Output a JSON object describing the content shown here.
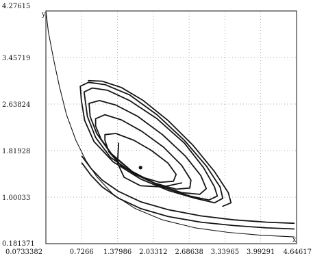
{
  "chart_data": {
    "type": "line",
    "title": "",
    "xlabel": "x",
    "ylabel": "y",
    "xlim": [
      0.0733382,
      4.64617
    ],
    "ylim": [
      0.181371,
      4.27615
    ],
    "x_tick_labels": [
      "0.0733382",
      "0.7266",
      "1.37986",
      "2.03312",
      "2.68638",
      "3.33965",
      "3.99291",
      "4.64617"
    ],
    "y_tick_labels": [
      "0.181371",
      "1.00033",
      "1.81928",
      "2.63824",
      "3.45719",
      "4.27615"
    ],
    "x_ticks": [
      0.0733382,
      0.7266,
      1.37986,
      2.03312,
      2.68638,
      3.33965,
      3.99291,
      4.64617
    ],
    "y_ticks": [
      0.181371,
      1.00033,
      1.81928,
      2.63824,
      3.45719,
      4.27615
    ],
    "grid": true,
    "equilibrium_point": {
      "x": 1.8,
      "y": 1.52
    },
    "series": [
      {
        "points": [
          [
            0.02,
            4.3
          ],
          [
            0.12,
            3.9
          ],
          [
            0.22,
            3.4
          ],
          [
            0.32,
            2.95
          ],
          [
            0.45,
            2.45
          ],
          [
            0.62,
            2.0
          ],
          [
            0.8,
            1.65
          ],
          [
            1.0,
            1.36
          ],
          [
            1.3,
            1.05
          ],
          [
            1.7,
            0.8
          ],
          [
            2.2,
            0.6
          ],
          [
            2.8,
            0.46
          ],
          [
            3.4,
            0.38
          ],
          [
            4.0,
            0.33
          ],
          [
            4.6,
            0.3
          ]
        ]
      },
      {
        "points": [
          [
            0.73,
            1.6
          ],
          [
            0.9,
            1.38
          ],
          [
            1.1,
            1.18
          ],
          [
            1.4,
            0.98
          ],
          [
            1.8,
            0.8
          ],
          [
            2.3,
            0.66
          ],
          [
            2.9,
            0.56
          ],
          [
            3.5,
            0.5
          ],
          [
            4.1,
            0.46
          ],
          [
            4.6,
            0.44
          ]
        ]
      },
      {
        "points": [
          [
            0.73,
            1.72
          ],
          [
            0.9,
            1.5
          ],
          [
            1.1,
            1.3
          ],
          [
            1.4,
            1.1
          ],
          [
            1.8,
            0.92
          ],
          [
            2.3,
            0.78
          ],
          [
            2.9,
            0.67
          ],
          [
            3.5,
            0.6
          ],
          [
            4.1,
            0.56
          ],
          [
            4.6,
            0.54
          ]
        ]
      },
      {
        "points": [
          [
            0.7,
            2.95
          ],
          [
            0.85,
            3.02
          ],
          [
            1.15,
            2.98
          ],
          [
            1.6,
            2.8
          ],
          [
            2.1,
            2.45
          ],
          [
            2.6,
            2.0
          ],
          [
            3.0,
            1.55
          ],
          [
            3.25,
            1.18
          ],
          [
            3.3,
            0.98
          ],
          [
            3.15,
            0.9
          ],
          [
            2.8,
            0.98
          ],
          [
            2.3,
            1.12
          ],
          [
            1.8,
            1.32
          ],
          [
            1.3,
            1.62
          ],
          [
            0.95,
            1.98
          ],
          [
            0.78,
            2.35
          ],
          [
            0.72,
            2.7
          ],
          [
            0.7,
            2.95
          ]
        ]
      },
      {
        "points": [
          [
            0.77,
            2.85
          ],
          [
            0.92,
            2.92
          ],
          [
            1.2,
            2.88
          ],
          [
            1.6,
            2.7
          ],
          [
            2.1,
            2.38
          ],
          [
            2.6,
            1.95
          ],
          [
            2.95,
            1.52
          ],
          [
            3.15,
            1.18
          ],
          [
            3.2,
            1.02
          ],
          [
            3.05,
            0.95
          ],
          [
            2.7,
            1.02
          ],
          [
            2.2,
            1.18
          ],
          [
            1.7,
            1.4
          ],
          [
            1.25,
            1.7
          ],
          [
            0.98,
            2.05
          ],
          [
            0.83,
            2.42
          ],
          [
            0.77,
            2.85
          ]
        ]
      },
      {
        "points": [
          [
            0.86,
            2.65
          ],
          [
            1.05,
            2.7
          ],
          [
            1.35,
            2.62
          ],
          [
            1.75,
            2.42
          ],
          [
            2.2,
            2.1
          ],
          [
            2.62,
            1.72
          ],
          [
            2.9,
            1.38
          ],
          [
            3.0,
            1.15
          ],
          [
            2.88,
            1.05
          ],
          [
            2.55,
            1.08
          ],
          [
            2.1,
            1.22
          ],
          [
            1.65,
            1.45
          ],
          [
            1.25,
            1.78
          ],
          [
            1.0,
            2.12
          ],
          [
            0.88,
            2.42
          ],
          [
            0.86,
            2.65
          ]
        ]
      },
      {
        "points": [
          [
            0.98,
            2.38
          ],
          [
            1.15,
            2.45
          ],
          [
            1.45,
            2.36
          ],
          [
            1.82,
            2.16
          ],
          [
            2.22,
            1.88
          ],
          [
            2.55,
            1.56
          ],
          [
            2.72,
            1.3
          ],
          [
            2.7,
            1.16
          ],
          [
            2.45,
            1.14
          ],
          [
            2.05,
            1.25
          ],
          [
            1.65,
            1.45
          ],
          [
            1.3,
            1.72
          ],
          [
            1.08,
            2.02
          ],
          [
            0.98,
            2.25
          ],
          [
            0.98,
            2.38
          ]
        ]
      },
      {
        "points": [
          [
            1.15,
            2.1
          ],
          [
            1.35,
            2.12
          ],
          [
            1.68,
            2.0
          ],
          [
            2.0,
            1.82
          ],
          [
            2.3,
            1.6
          ],
          [
            2.45,
            1.4
          ],
          [
            2.4,
            1.28
          ],
          [
            2.15,
            1.26
          ],
          [
            1.8,
            1.36
          ],
          [
            1.45,
            1.55
          ],
          [
            1.22,
            1.8
          ],
          [
            1.15,
            2.0
          ],
          [
            1.15,
            2.1
          ]
        ]
      },
      {
        "points": [
          [
            0.85,
            3.05
          ],
          [
            1.1,
            3.04
          ],
          [
            1.45,
            2.93
          ],
          [
            1.85,
            2.7
          ],
          [
            2.3,
            2.35
          ],
          [
            2.75,
            1.92
          ],
          [
            3.15,
            1.45
          ],
          [
            3.4,
            1.08
          ],
          [
            3.45,
            0.9
          ],
          [
            3.3,
            0.84
          ]
        ]
      },
      {
        "points": [
          [
            1.4,
            1.95
          ],
          [
            1.38,
            1.6
          ],
          [
            1.5,
            1.35
          ],
          [
            1.8,
            1.2
          ],
          [
            2.2,
            1.18
          ],
          [
            2.55,
            1.25
          ]
        ]
      }
    ]
  }
}
